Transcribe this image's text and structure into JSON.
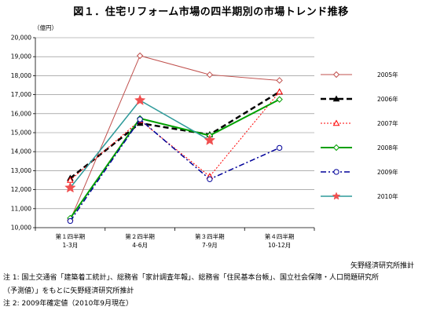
{
  "title": "図１．住宅リフォーム市場の四半期別の市場トレンド推移",
  "source": "矢野経済研究所推計",
  "notes": [
    "注 1: 国土交通省「建築着工統計」、総務省「家計調査年報」、総務省「住民基本台帳」、国立社会保障・人口問題研究所",
    "（予測値）」をもとに矢野経済研究所推計",
    "注 2: 2009年確定値（2010年9月現在）"
  ],
  "chart_data": {
    "type": "line",
    "ylabel": "（億円）",
    "ylim": [
      10000,
      20000
    ],
    "yticks": [
      "10,000",
      "11,000",
      "12,000",
      "13,000",
      "14,000",
      "15,000",
      "16,000",
      "17,000",
      "18,000",
      "19,000",
      "20,000"
    ],
    "categories": [
      [
        "第１四半期",
        "1-3月"
      ],
      [
        "第２四半期",
        "4-6月"
      ],
      [
        "第３四半期",
        "7-9月"
      ],
      [
        "第４四半期",
        "10-12月"
      ]
    ],
    "grid": true,
    "legend": "right",
    "series": [
      {
        "name": "2005年",
        "values": [
          10400,
          19050,
          18050,
          17750
        ],
        "color": "#c0504d",
        "dash": "",
        "marker": "diamond-open",
        "width": 1
      },
      {
        "name": "2006年",
        "values": [
          12600,
          15500,
          14900,
          17150
        ],
        "color": "#000000",
        "dash": "7,4",
        "marker": "triangle-filled",
        "width": 2.5
      },
      {
        "name": "2007年",
        "values": [
          12500,
          15650,
          12700,
          17150
        ],
        "color": "#ff0000",
        "dash": "2,2",
        "marker": "triangle-open",
        "width": 1
      },
      {
        "name": "2008年",
        "values": [
          10500,
          15750,
          14850,
          16750
        ],
        "color": "#00a000",
        "dash": "",
        "marker": "diamond-open",
        "width": 2
      },
      {
        "name": "2009年",
        "values": [
          10350,
          15700,
          12550,
          14200
        ],
        "color": "#000099",
        "dash": "7,3,2,3",
        "marker": "circle-open",
        "width": 1.5
      },
      {
        "name": "2010年",
        "values": [
          12100,
          16700,
          14600,
          null
        ],
        "color": "#2e9a9a",
        "dash": "",
        "marker": "star",
        "markerColor": "#f05050",
        "width": 1.5
      }
    ]
  }
}
